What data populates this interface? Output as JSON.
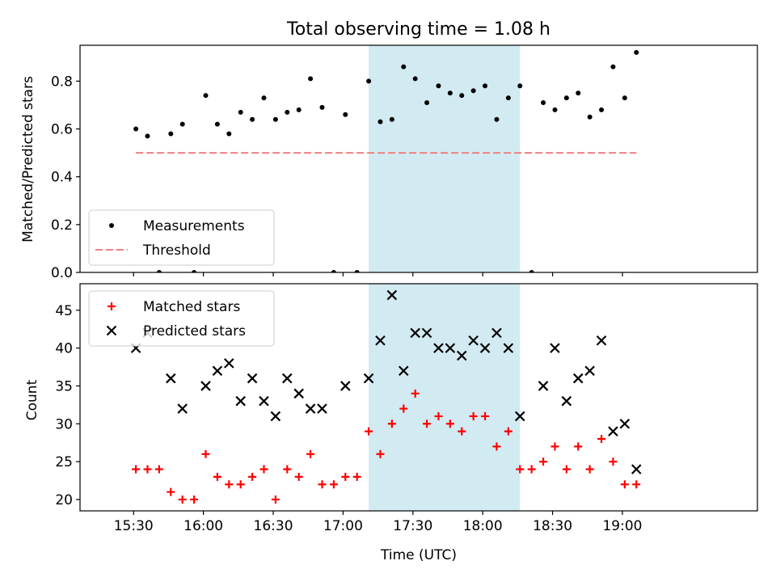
{
  "title": "Total observing time = 1.08 h",
  "colors": {
    "measurement": "#000000",
    "threshold": "#f08080",
    "matched": "#ff0000",
    "predicted": "#000000",
    "highlight": "#add8e6"
  },
  "chart_data": [
    {
      "type": "scatter",
      "ylabel": "Matched/Predicted stars",
      "ylim": [
        0,
        0.95
      ],
      "yticks": [
        "0.0",
        "0.2",
        "0.4",
        "0.6",
        "0.8"
      ],
      "xlim_minutes": [
        907,
        1198
      ],
      "xticks": [
        "15:30",
        "16:00",
        "16:30",
        "17:00",
        "17:30",
        "18:00",
        "18:30",
        "19:00"
      ],
      "highlight_x": [
        "17:11",
        "18:16"
      ],
      "legend_position": "lower-left",
      "series": [
        {
          "name": "Measurements",
          "x": [
            "15:31",
            "15:36",
            "15:41",
            "15:46",
            "15:51",
            "15:56",
            "16:01",
            "16:06",
            "16:11",
            "16:16",
            "16:21",
            "16:26",
            "16:31",
            "16:36",
            "16:41",
            "16:46",
            "16:51",
            "16:56",
            "17:01",
            "17:06",
            "17:11",
            "17:16",
            "17:21",
            "17:26",
            "17:31",
            "17:36",
            "17:41",
            "17:46",
            "17:51",
            "17:56",
            "18:01",
            "18:06",
            "18:11",
            "18:16",
            "18:21",
            "18:26",
            "18:31",
            "18:36",
            "18:41",
            "18:46",
            "18:51",
            "18:56",
            "19:01",
            "19:06"
          ],
          "y": [
            0.6,
            0.57,
            0.0,
            0.58,
            0.62,
            0.0,
            0.74,
            0.62,
            0.58,
            0.67,
            0.64,
            0.73,
            0.64,
            0.67,
            0.68,
            0.81,
            0.69,
            0.0,
            0.66,
            0.0,
            0.8,
            0.63,
            0.64,
            0.86,
            0.81,
            0.71,
            0.78,
            0.75,
            0.74,
            0.76,
            0.78,
            0.64,
            0.73,
            0.78,
            0.0,
            0.71,
            0.68,
            0.73,
            0.75,
            0.65,
            0.68,
            0.86,
            0.73,
            0.92
          ]
        },
        {
          "name": "Threshold",
          "x": [
            "15:31",
            "19:06"
          ],
          "y": [
            0.5,
            0.5
          ]
        }
      ]
    },
    {
      "type": "scatter",
      "xlabel": "Time (UTC)",
      "ylabel": "Count",
      "ylim": [
        18.5,
        48.5
      ],
      "yticks": [
        "20",
        "25",
        "30",
        "35",
        "40",
        "45"
      ],
      "xlim_minutes": [
        907,
        1198
      ],
      "xticks": [
        "15:30",
        "16:00",
        "16:30",
        "17:00",
        "17:30",
        "18:00",
        "18:30",
        "19:00"
      ],
      "highlight_x": [
        "17:11",
        "18:16"
      ],
      "legend_position": "upper-left",
      "series": [
        {
          "name": "Matched stars",
          "x": [
            "15:31",
            "15:36",
            "15:41",
            "15:46",
            "15:51",
            "15:56",
            "16:01",
            "16:06",
            "16:11",
            "16:16",
            "16:21",
            "16:26",
            "16:31",
            "16:36",
            "16:41",
            "16:46",
            "16:51",
            "16:56",
            "17:01",
            "17:06",
            "17:11",
            "17:16",
            "17:21",
            "17:26",
            "17:31",
            "17:36",
            "17:41",
            "17:46",
            "17:51",
            "17:56",
            "18:01",
            "18:06",
            "18:11",
            "18:16",
            "18:21",
            "18:26",
            "18:31",
            "18:36",
            "18:41",
            "18:46",
            "18:51",
            "18:56",
            "19:01",
            "19:06"
          ],
          "y": [
            24,
            24,
            24,
            21,
            20,
            20,
            26,
            23,
            22,
            22,
            23,
            24,
            20,
            24,
            23,
            26,
            22,
            22,
            23,
            23,
            29,
            26,
            30,
            32,
            34,
            30,
            31,
            30,
            29,
            31,
            31,
            27,
            29,
            24,
            24,
            25,
            27,
            24,
            27,
            24,
            28,
            25,
            22,
            22
          ]
        },
        {
          "name": "Predicted stars",
          "x": [
            "15:31",
            "15:36",
            "15:46",
            "15:51",
            "16:01",
            "16:06",
            "16:11",
            "16:16",
            "16:21",
            "16:26",
            "16:31",
            "16:36",
            "16:41",
            "16:46",
            "16:51",
            "17:01",
            "17:11",
            "17:16",
            "17:21",
            "17:26",
            "17:31",
            "17:36",
            "17:41",
            "17:46",
            "17:51",
            "17:56",
            "18:01",
            "18:06",
            "18:11",
            "18:16",
            "18:26",
            "18:31",
            "18:36",
            "18:41",
            "18:46",
            "18:51",
            "18:56",
            "19:01",
            "19:06"
          ],
          "y": [
            40,
            42,
            36,
            32,
            35,
            37,
            38,
            33,
            36,
            33,
            31,
            36,
            34,
            32,
            32,
            35,
            36,
            41,
            47,
            37,
            42,
            42,
            40,
            40,
            39,
            41,
            40,
            42,
            40,
            31,
            35,
            40,
            33,
            36,
            37,
            41,
            29,
            30,
            24
          ]
        }
      ]
    }
  ]
}
